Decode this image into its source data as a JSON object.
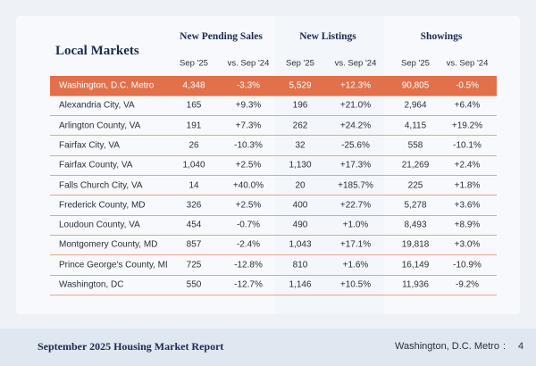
{
  "header": {
    "title": "Local Markets",
    "groups": [
      {
        "title": "New Pending Sales",
        "columns": [
          "Sep '25",
          "vs. Sep '24"
        ]
      },
      {
        "title": "New Listings",
        "columns": [
          "Sep '25",
          "vs. Sep '24"
        ]
      },
      {
        "title": "Showings",
        "columns": [
          "Sep '25",
          "vs. Sep '24"
        ]
      }
    ]
  },
  "table": {
    "rows": [
      [
        "Washington, D.C. Metro",
        "4,348",
        "-3.3%",
        "5,529",
        "+12.3%",
        "90,805",
        "-0.5%"
      ],
      [
        "Alexandria City, VA",
        "165",
        "+9.3%",
        "196",
        "+21.0%",
        "2,964",
        "+6.4%"
      ],
      [
        "Arlington County, VA",
        "191",
        "+7.3%",
        "262",
        "+24.2%",
        "4,115",
        "+19.2%"
      ],
      [
        "Fairfax City, VA",
        "26",
        "-10.3%",
        "32",
        "-25.6%",
        "558",
        "-10.1%"
      ],
      [
        "Fairfax County, VA",
        "1,040",
        "+2.5%",
        "1,130",
        "+17.3%",
        "21,269",
        "+2.4%"
      ],
      [
        "Falls Church City, VA",
        "14",
        "+40.0%",
        "20",
        "+185.7%",
        "225",
        "+1.8%"
      ],
      [
        "Frederick County, MD",
        "326",
        "+2.5%",
        "400",
        "+22.7%",
        "5,278",
        "+3.6%"
      ],
      [
        "Loudoun County, VA",
        "454",
        "-0.7%",
        "490",
        "+1.0%",
        "8,493",
        "+8.9%"
      ],
      [
        "Montgomery County, MD",
        "857",
        "-2.4%",
        "1,043",
        "+17.1%",
        "19,818",
        "+3.0%"
      ],
      [
        "Prince George's County, MD",
        "725",
        "-12.8%",
        "810",
        "+1.6%",
        "16,149",
        "-10.9%"
      ],
      [
        "Washington,  DC",
        "550",
        "-12.7%",
        "1,146",
        "+10.5%",
        "11,936",
        "-9.2%"
      ]
    ]
  },
  "footer": {
    "title": "September 2025 Housing Market Report",
    "region": "Washington, D.C. Metro",
    "separator": ":",
    "page": "4"
  }
}
